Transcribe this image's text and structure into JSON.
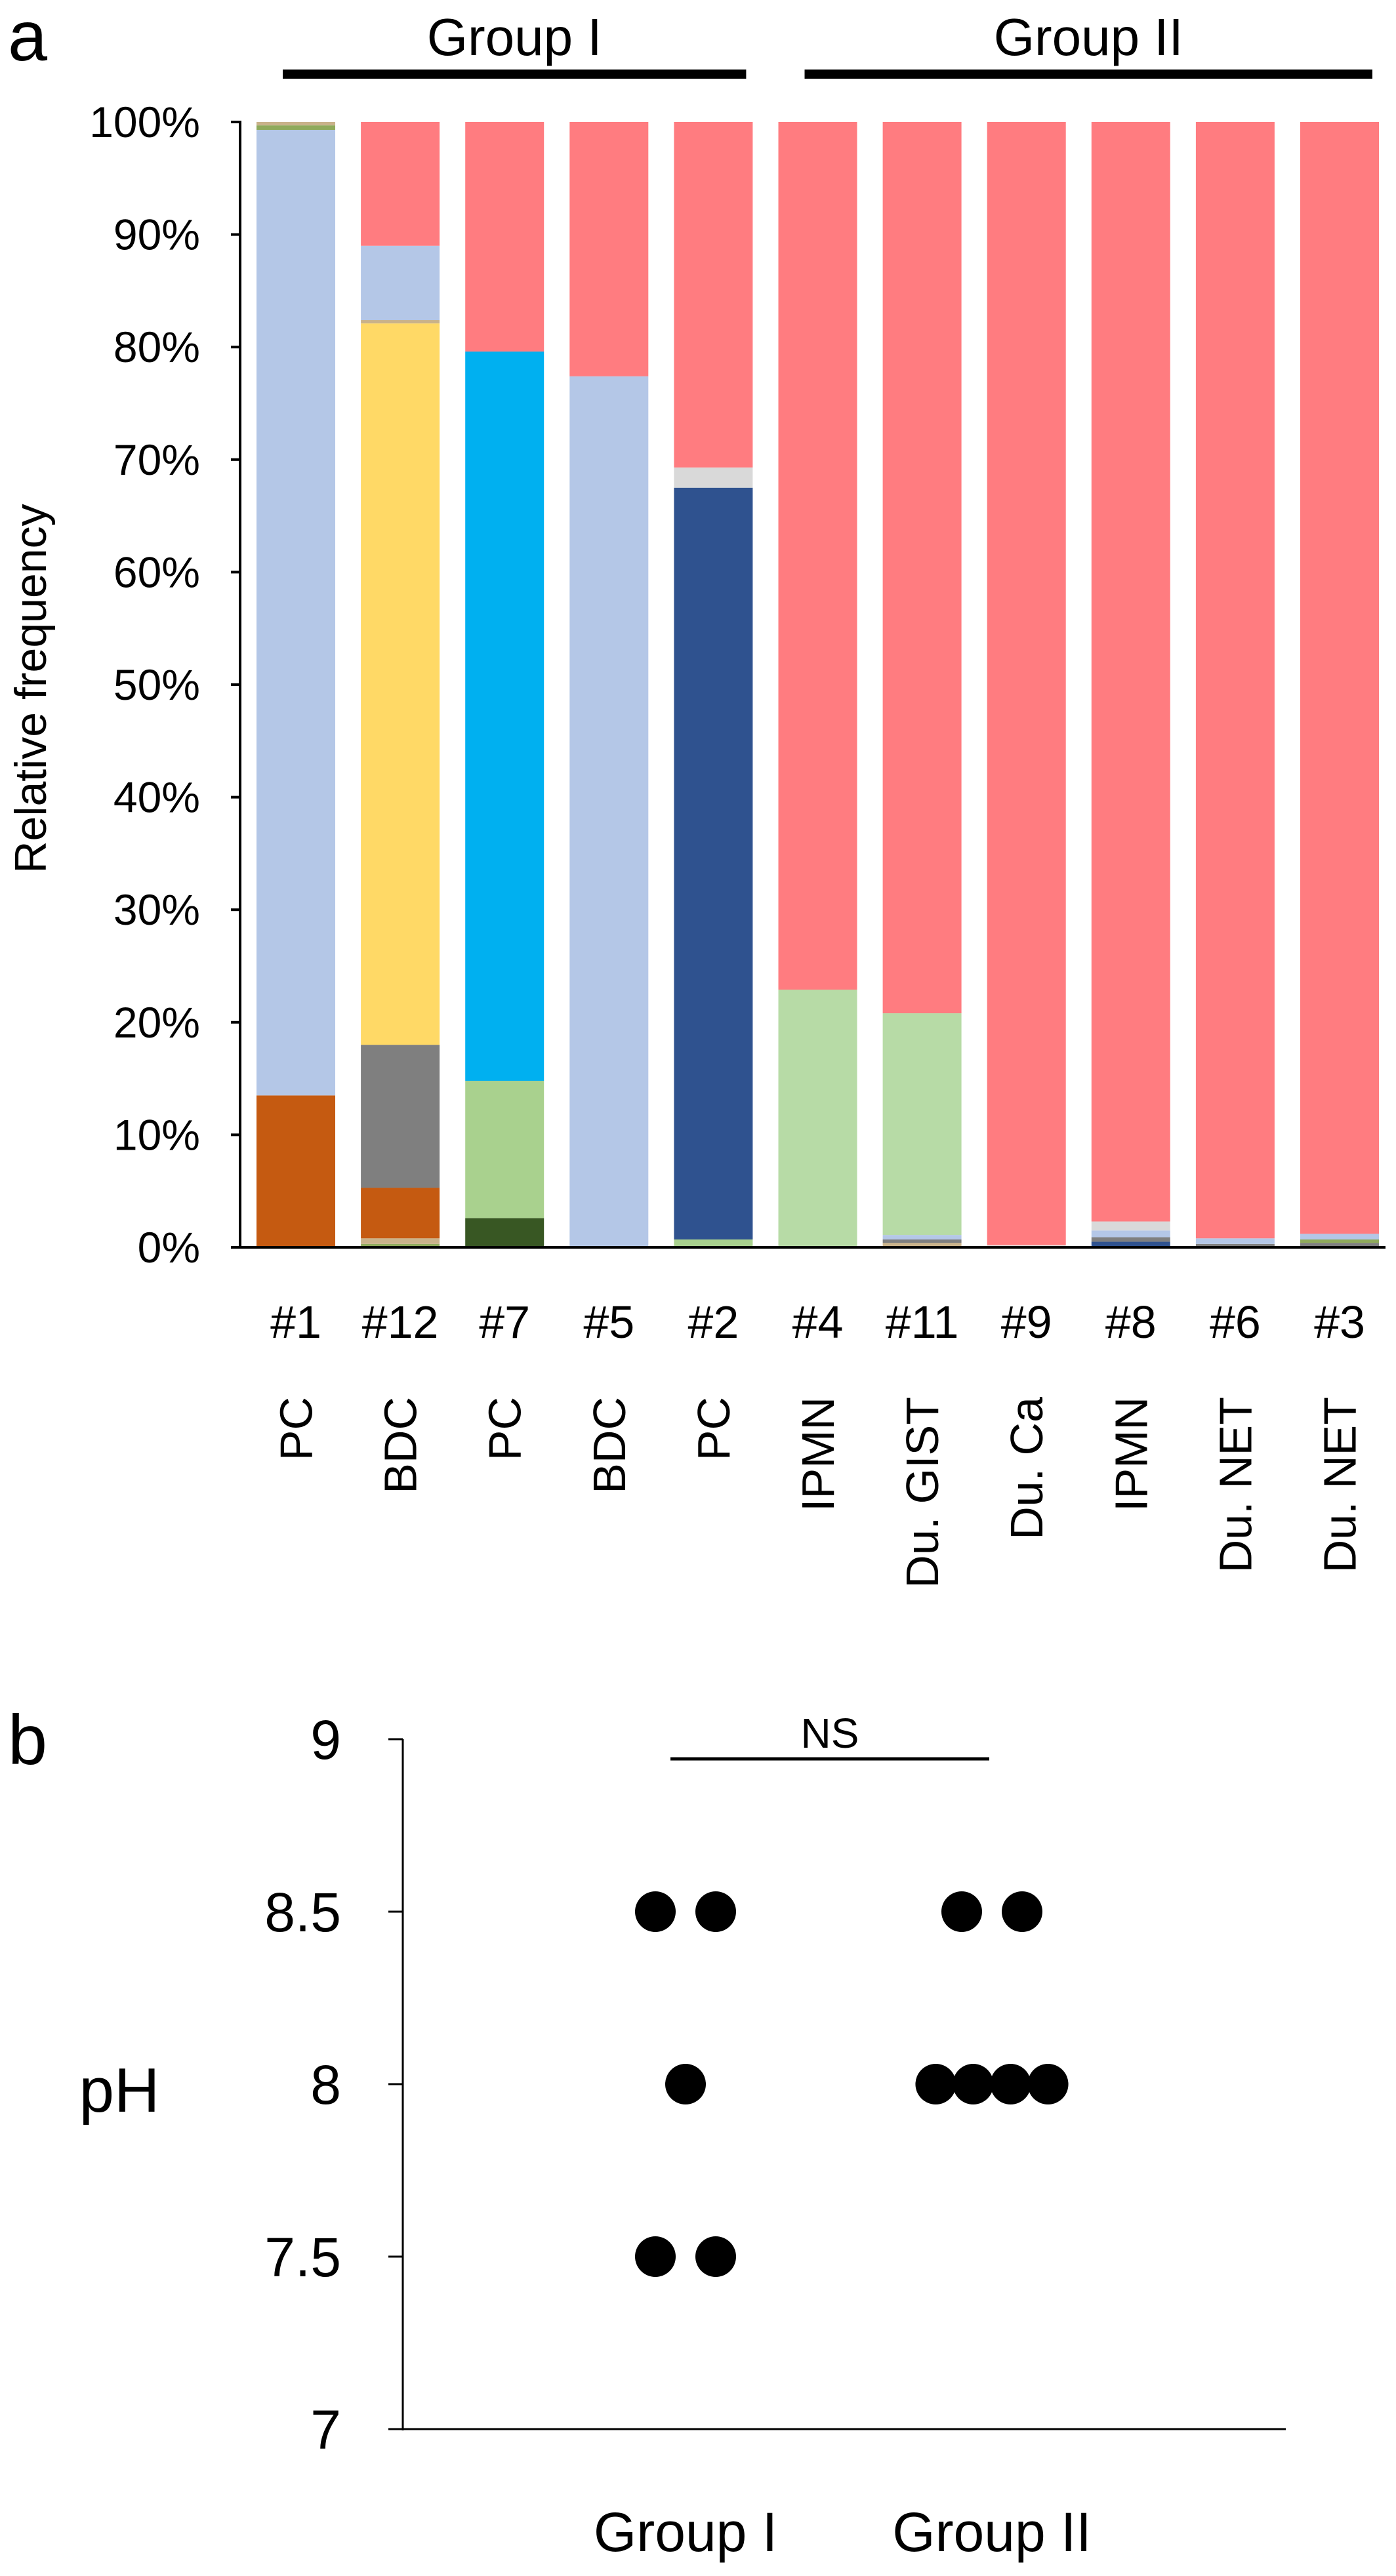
{
  "colors": {
    "pink": "#FF7C80",
    "light_blue": "#B4C7E7",
    "yellow": "#FFD966",
    "gray": "#7F7F7F",
    "rust": "#C55A11",
    "cyan": "#00B0F0",
    "light_green": "#A9D18E",
    "pale_green": "#B7DBA6",
    "dark_green": "#385723",
    "navy": "#2F528F",
    "light_gray": "#D9D9D9",
    "tan": "#C9B28A",
    "olive": "#8FAA5C",
    "dot": "#000000",
    "axis": "#000000"
  },
  "chart_data": [
    {
      "panel": "a",
      "type": "bar",
      "stacked": true,
      "ylabel": "Relative frequency",
      "ylim": [
        0,
        100
      ],
      "yticks": [
        "0%",
        "10%",
        "20%",
        "30%",
        "40%",
        "50%",
        "60%",
        "70%",
        "80%",
        "90%",
        "100%"
      ],
      "groups": [
        {
          "label": "Group I",
          "categories": [
            "#1",
            "#12",
            "#7",
            "#5",
            "#2"
          ]
        },
        {
          "label": "Group II",
          "categories": [
            "#4",
            "#11",
            "#9",
            "#8",
            "#6",
            "#3"
          ]
        }
      ],
      "categories": [
        "#1",
        "#12",
        "#7",
        "#5",
        "#2",
        "#4",
        "#11",
        "#9",
        "#8",
        "#6",
        "#3"
      ],
      "diagnoses": [
        "PC",
        "BDC",
        "PC",
        "BDC",
        "PC",
        "IPMN",
        "Du. GIST",
        "Du. Ca",
        "IPMN",
        "Du. NET",
        "Du. NET"
      ],
      "stacks": [
        [
          {
            "color": "rust",
            "value": 13.5
          },
          {
            "color": "light_blue",
            "value": 85.8
          },
          {
            "color": "olive",
            "value": 0.4
          },
          {
            "color": "tan",
            "value": 0.3
          }
        ],
        [
          {
            "color": "olive",
            "value": 0.3
          },
          {
            "color": "tan",
            "value": 0.5
          },
          {
            "color": "rust",
            "value": 4.5
          },
          {
            "color": "gray",
            "value": 12.7
          },
          {
            "color": "yellow",
            "value": 64.1
          },
          {
            "color": "tan",
            "value": 0.3
          },
          {
            "color": "light_blue",
            "value": 6.6
          },
          {
            "color": "pink",
            "value": 11.0
          }
        ],
        [
          {
            "color": "dark_green",
            "value": 2.6
          },
          {
            "color": "light_green",
            "value": 12.2
          },
          {
            "color": "cyan",
            "value": 64.8
          },
          {
            "color": "pink",
            "value": 20.4
          }
        ],
        [
          {
            "color": "light_blue",
            "value": 77.4
          },
          {
            "color": "pink",
            "value": 22.6
          }
        ],
        [
          {
            "color": "light_green",
            "value": 0.7
          },
          {
            "color": "navy",
            "value": 66.8
          },
          {
            "color": "light_gray",
            "value": 1.8
          },
          {
            "color": "pink",
            "value": 30.7
          }
        ],
        [
          {
            "color": "pale_green",
            "value": 22.9
          },
          {
            "color": "pink",
            "value": 77.1
          }
        ],
        [
          {
            "color": "tan",
            "value": 0.4
          },
          {
            "color": "gray",
            "value": 0.3
          },
          {
            "color": "light_blue",
            "value": 0.4
          },
          {
            "color": "pale_green",
            "value": 19.7
          },
          {
            "color": "pink",
            "value": 79.2
          }
        ],
        [
          {
            "color": "light_gray",
            "value": 0.2
          },
          {
            "color": "pink",
            "value": 99.8
          }
        ],
        [
          {
            "color": "navy",
            "value": 0.5
          },
          {
            "color": "gray",
            "value": 0.4
          },
          {
            "color": "light_blue",
            "value": 0.6
          },
          {
            "color": "light_gray",
            "value": 0.8
          },
          {
            "color": "pink",
            "value": 97.7
          }
        ],
        [
          {
            "color": "gray",
            "value": 0.3
          },
          {
            "color": "light_blue",
            "value": 0.5
          },
          {
            "color": "pink",
            "value": 99.2
          }
        ],
        [
          {
            "color": "gray",
            "value": 0.4
          },
          {
            "color": "olive",
            "value": 0.3
          },
          {
            "color": "light_blue",
            "value": 0.5
          },
          {
            "color": "pink",
            "value": 98.8
          }
        ]
      ]
    },
    {
      "panel": "b",
      "type": "scatter",
      "ylabel": "pH",
      "ylim": [
        7,
        9
      ],
      "yticks": [
        "7",
        "7.5",
        "8",
        "8.5",
        "9"
      ],
      "categories": [
        "Group I",
        "Group II"
      ],
      "series": [
        {
          "values": [
            8.5,
            8.5,
            8,
            7.5,
            7.5
          ]
        },
        {
          "values": [
            8.5,
            8.5,
            8,
            8,
            8,
            8
          ]
        }
      ],
      "annotation": "NS"
    }
  ]
}
